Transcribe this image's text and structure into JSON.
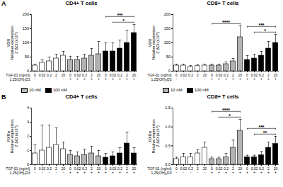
{
  "chart_data": [
    {
      "type": "bar",
      "panel": "A",
      "title": "CD4+ T cells",
      "ylabel": "VDR\nRelative expression\n2⁻ΔCt (x10⁵)",
      "x_label": "TGF-β1 (ng/ml)",
      "treatment_label": "1,25(OH)₂D3",
      "categories": [
        "0",
        "0.02",
        "0.2",
        "2",
        "20"
      ],
      "ylim": [
        0,
        200
      ],
      "yticks": [
        0,
        50,
        100,
        150,
        200
      ],
      "legend": "bottom-left",
      "series": [
        {
          "treatment": "-",
          "color": "#ffffff",
          "values": [
            20,
            30,
            35,
            45,
            55
          ],
          "errors": [
            5,
            10,
            15,
            15,
            15
          ]
        },
        {
          "name": "10 nM",
          "treatment": "+",
          "color": "#b3b3b3",
          "values": [
            40,
            40,
            45,
            55,
            60
          ],
          "errors": [
            12,
            12,
            15,
            25,
            45
          ]
        },
        {
          "name": "100 nM",
          "treatment": "+",
          "color": "#000000",
          "values": [
            70,
            70,
            80,
            100,
            135
          ],
          "errors": [
            30,
            30,
            30,
            45,
            30
          ]
        }
      ],
      "significance": [
        {
          "series": 2,
          "from": "0.02",
          "to": "20",
          "label": "*"
        },
        {
          "series": 2,
          "from": "0",
          "to": "20",
          "label": "***"
        }
      ]
    },
    {
      "type": "bar",
      "title": "CD8+ T cells",
      "ylabel": "VDR\nRelative expression\n2⁻ΔCt (x10⁵)",
      "x_label": "TGF-β1 (ng/ml)",
      "treatment_label": "1,25(OH)₂D3",
      "categories": [
        "0",
        "0.02",
        "0.2",
        "2",
        "20"
      ],
      "ylim": [
        0,
        200
      ],
      "yticks": [
        0,
        50,
        100,
        150,
        200
      ],
      "legend": "bottom-left",
      "series": [
        {
          "treatment": "-",
          "color": "#ffffff",
          "values": [
            20,
            20,
            15,
            18,
            20
          ],
          "errors": [
            5,
            5,
            5,
            5,
            5
          ]
        },
        {
          "name": "10 nM",
          "treatment": "+",
          "color": "#b3b3b3",
          "values": [
            20,
            20,
            25,
            35,
            120
          ],
          "errors": [
            5,
            5,
            8,
            10,
            40
          ]
        },
        {
          "name": "100 nM",
          "treatment": "+",
          "color": "#000000",
          "values": [
            40,
            45,
            55,
            80,
            100
          ],
          "errors": [
            15,
            15,
            15,
            25,
            30
          ]
        }
      ],
      "significance": [
        {
          "series": 1,
          "from": "0",
          "to": "20",
          "label": "****"
        },
        {
          "series": 2,
          "from": "0.02",
          "to": "20",
          "label": "*"
        },
        {
          "series": 2,
          "from": "0",
          "to": "20",
          "label": "***"
        }
      ]
    },
    {
      "type": "bar",
      "panel": "B",
      "title": "CD4+ T cells",
      "ylabel": "RXRα\nRelative expression\n2⁻ΔCt (x10⁵)",
      "x_label": "TGF-β1 (ng/ml)",
      "treatment_label": "1,25(OH)₂D3",
      "categories": [
        "0",
        "0.02",
        "0.2",
        "2",
        "20"
      ],
      "ylim": [
        0,
        4
      ],
      "yticks": [
        0,
        1,
        2,
        3,
        4
      ],
      "series": [
        {
          "treatment": "-",
          "color": "#ffffff",
          "values": [
            0.8,
            1,
            1.2,
            1.4,
            1.1
          ],
          "errors": [
            0.6,
            1.8,
            1.6,
            1.2,
            0.5
          ]
        },
        {
          "name": "10 nM",
          "treatment": "+",
          "color": "#b3b3b3",
          "values": [
            0.7,
            0.6,
            0.7,
            0.8,
            0.6
          ],
          "errors": [
            0.3,
            0.3,
            0.4,
            0.5,
            0.4
          ]
        },
        {
          "name": "100 nM",
          "treatment": "+",
          "color": "#000000",
          "values": [
            0.5,
            0.6,
            0.8,
            1.5,
            0.8
          ],
          "errors": [
            0.3,
            0.3,
            0.4,
            0.8,
            0.4
          ]
        }
      ]
    },
    {
      "type": "bar",
      "title": "CD8+ T cells",
      "ylabel": "RXRα\nRelative expression\n2⁻ΔCt (x10⁵)",
      "x_label": "TGF-β1 (ng/ml)",
      "treatment_label": "1,25(OH)₂D3",
      "categories": [
        "0",
        "0.02",
        "0.2",
        "2",
        "20"
      ],
      "ylim": [
        0,
        1.5
      ],
      "yticks": [
        {
          "value": 0,
          "label": "0.0"
        },
        {
          "value": 0.5,
          "label": "0.5"
        },
        {
          "value": 1,
          "label": "1.0"
        },
        {
          "value": 1.5,
          "label": "1.5"
        }
      ],
      "series": [
        {
          "treatment": "-",
          "color": "#ffffff",
          "values": [
            0.15,
            0.2,
            0.2,
            0.3,
            0.45
          ],
          "errors": [
            0.05,
            0.1,
            0.1,
            0.1,
            0.15
          ]
        },
        {
          "name": "10 nM",
          "treatment": "+",
          "color": "#b3b3b3",
          "values": [
            0.15,
            0.15,
            0.2,
            0.45,
            0.9
          ],
          "errors": [
            0.05,
            0.05,
            0.1,
            0.2,
            0.3
          ]
        },
        {
          "name": "100 nM",
          "treatment": "+",
          "color": "#000000",
          "values": [
            0.2,
            0.2,
            0.25,
            0.45,
            0.55
          ],
          "errors": [
            0.05,
            0.05,
            0.1,
            0.15,
            0.2
          ]
        }
      ],
      "significance": [
        {
          "series": 1,
          "from": "0.02",
          "to": "20",
          "label": "*"
        },
        {
          "series": 1,
          "from": "0",
          "to": "20",
          "label": "****"
        },
        {
          "series": 2,
          "from": "0.02",
          "to": "20",
          "label": "**"
        },
        {
          "series": 2,
          "from": "0",
          "to": "20",
          "label": "***"
        }
      ]
    }
  ]
}
